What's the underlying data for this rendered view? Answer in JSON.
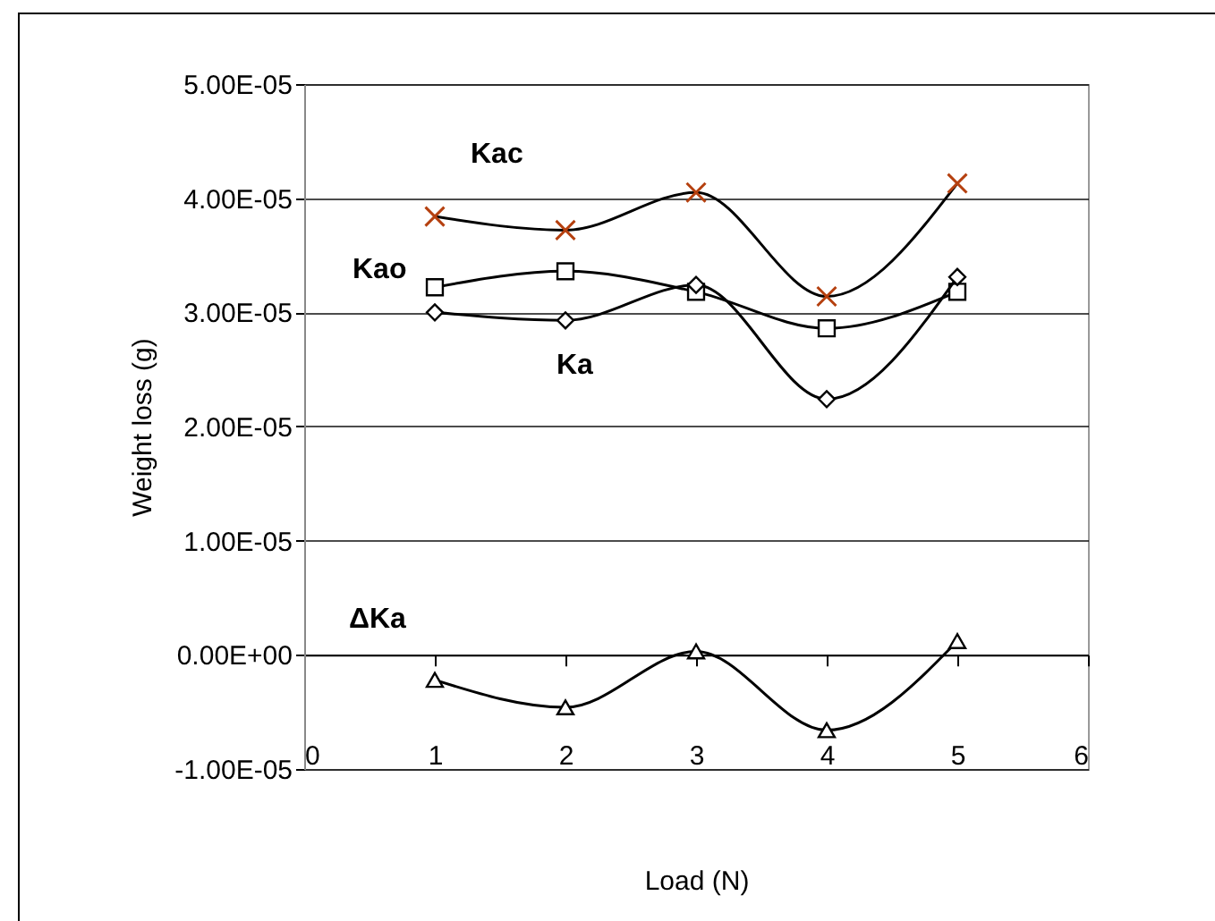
{
  "chart_data": {
    "type": "line",
    "xlabel": "Load (N)",
    "ylabel": "Weight loss (g)",
    "x": [
      1,
      2,
      3,
      4,
      5
    ],
    "series": [
      {
        "name": "Kac",
        "color": "#b5400f",
        "marker": "cross",
        "values": [
          3.84e-05,
          3.72e-05,
          4.05e-05,
          3.14e-05,
          4.13e-05
        ]
      },
      {
        "name": "Kao",
        "color": "#000000",
        "marker": "square",
        "values": [
          3.22e-05,
          3.36e-05,
          3.18e-05,
          2.86e-05,
          3.18e-05
        ]
      },
      {
        "name": "Ka",
        "color": "#000000",
        "marker": "diamond",
        "values": [
          3e-05,
          2.93e-05,
          3.24e-05,
          2.24e-05,
          3.31e-05
        ]
      },
      {
        "name": "ΔKa",
        "color": "#000000",
        "marker": "triangle",
        "values": [
          -2.2e-06,
          -4.6e-06,
          3e-07,
          -6.6e-06,
          1.2e-06
        ]
      }
    ],
    "xlim": [
      0,
      6
    ],
    "xticks": [
      0,
      1,
      2,
      3,
      4,
      5,
      6
    ],
    "ylim": [
      -1e-05,
      5e-05
    ],
    "yticks": [
      {
        "value": -1e-05,
        "label": "-1.00E-05"
      },
      {
        "value": 0,
        "label": "0.00E+00"
      },
      {
        "value": 1e-05,
        "label": "1.00E-05"
      },
      {
        "value": 2e-05,
        "label": "2.00E-05"
      },
      {
        "value": 3e-05,
        "label": "3.00E-05"
      },
      {
        "value": 4e-05,
        "label": "4.00E-05"
      },
      {
        "value": 5e-05,
        "label": "5.00E-05"
      }
    ],
    "grid": "y",
    "legend": false
  }
}
